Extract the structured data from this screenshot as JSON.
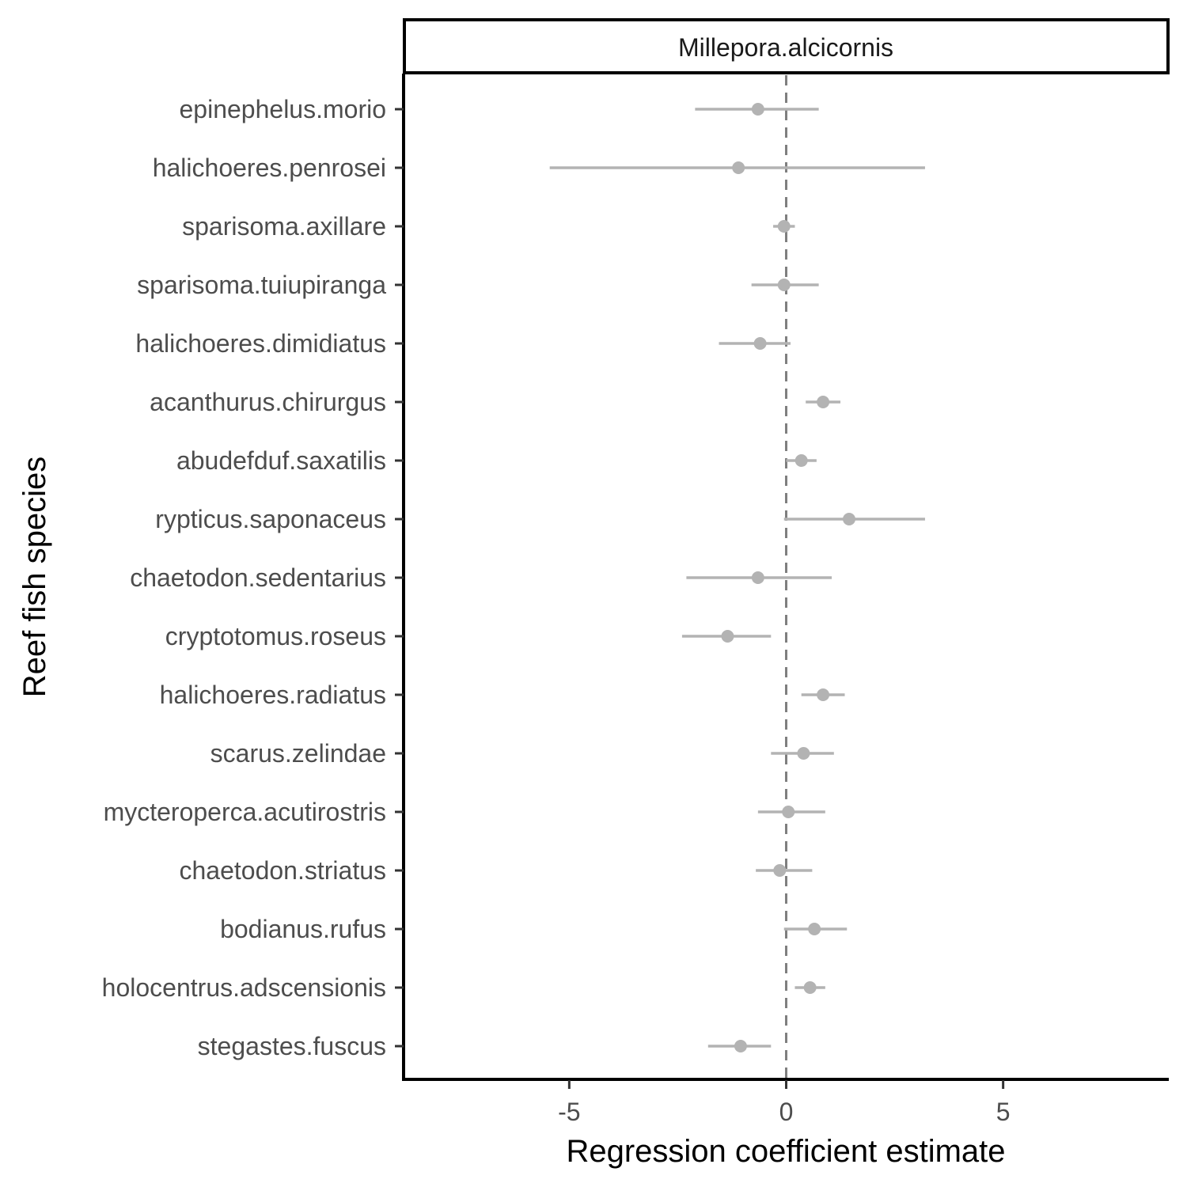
{
  "chart_data": {
    "type": "scatter",
    "facet_label": "Millepora.alcicornis",
    "xlabel": "Regression coefficient estimate",
    "ylabel": "Reef fish species",
    "xlim": [
      -8.8,
      8.8
    ],
    "xticks": [
      -5,
      0,
      5
    ],
    "xtick_labels": [
      "-5",
      "0",
      "5"
    ],
    "reference_line": 0,
    "grid": false,
    "colors": {
      "point": "#b3b3b3",
      "reference_line": "#7f7f7f"
    },
    "points": [
      {
        "species": "epinephelus.morio",
        "estimate": -0.65,
        "lower": -2.1,
        "upper": 0.75
      },
      {
        "species": "halichoeres.penrosei",
        "estimate": -1.1,
        "lower": -5.45,
        "upper": 3.2
      },
      {
        "species": "sparisoma.axillare",
        "estimate": -0.05,
        "lower": -0.3,
        "upper": 0.2
      },
      {
        "species": "sparisoma.tuiupiranga",
        "estimate": -0.05,
        "lower": -0.8,
        "upper": 0.75
      },
      {
        "species": "halichoeres.dimidiatus",
        "estimate": -0.6,
        "lower": -1.55,
        "upper": 0.1
      },
      {
        "species": "acanthurus.chirurgus",
        "estimate": 0.85,
        "lower": 0.45,
        "upper": 1.25
      },
      {
        "species": "abudefduf.saxatilis",
        "estimate": 0.35,
        "lower": 0.0,
        "upper": 0.7
      },
      {
        "species": "rypticus.saponaceus",
        "estimate": 1.45,
        "lower": -0.05,
        "upper": 3.2
      },
      {
        "species": "chaetodon.sedentarius",
        "estimate": -0.65,
        "lower": -2.3,
        "upper": 1.05
      },
      {
        "species": "cryptotomus.roseus",
        "estimate": -1.35,
        "lower": -2.4,
        "upper": -0.35
      },
      {
        "species": "halichoeres.radiatus",
        "estimate": 0.85,
        "lower": 0.35,
        "upper": 1.35
      },
      {
        "species": "scarus.zelindae",
        "estimate": 0.4,
        "lower": -0.35,
        "upper": 1.1
      },
      {
        "species": "mycteroperca.acutirostris",
        "estimate": 0.05,
        "lower": -0.65,
        "upper": 0.9
      },
      {
        "species": "chaetodon.striatus",
        "estimate": -0.15,
        "lower": -0.7,
        "upper": 0.6
      },
      {
        "species": "bodianus.rufus",
        "estimate": 0.65,
        "lower": -0.05,
        "upper": 1.4
      },
      {
        "species": "holocentrus.adscensionis",
        "estimate": 0.55,
        "lower": 0.2,
        "upper": 0.9
      },
      {
        "species": "stegastes.fuscus",
        "estimate": -1.05,
        "lower": -1.8,
        "upper": -0.35
      }
    ]
  }
}
